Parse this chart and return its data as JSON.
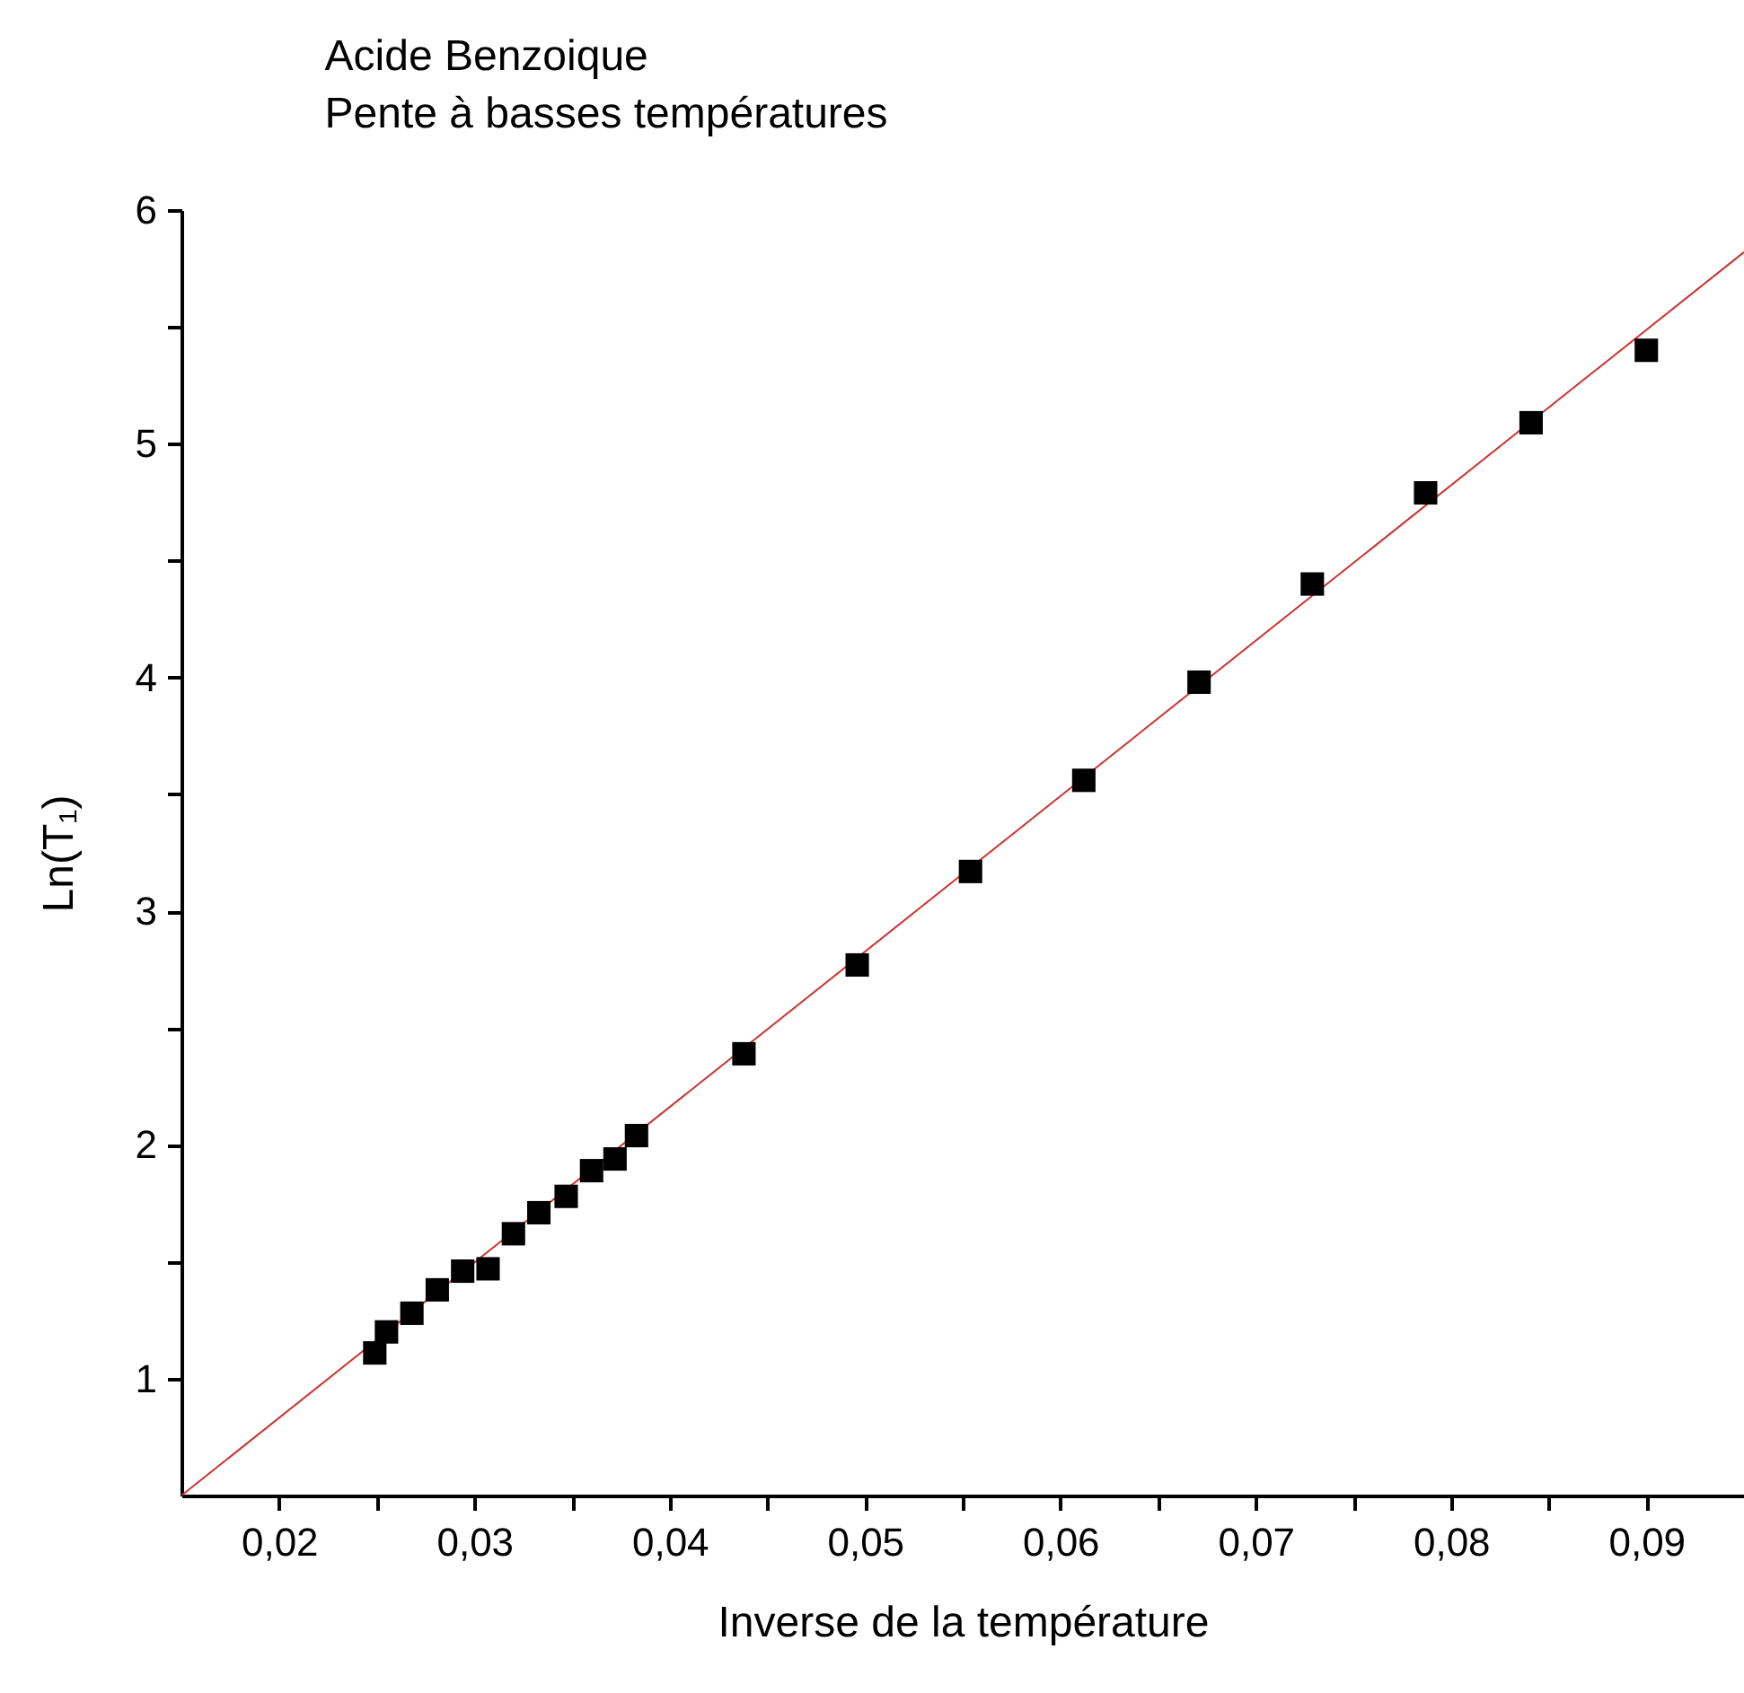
{
  "chart_data": {
    "type": "scatter",
    "title": "Acide Benzoique",
    "subtitle": "Pente à basses températures",
    "xlabel": "Inverse de la température",
    "ylabel": "Ln(T₁)",
    "grid": false,
    "xlim": [
      0.015,
      0.095
    ],
    "ylim": [
      0.5,
      6
    ],
    "xticks": [
      {
        "value": 0.02,
        "label": "0,02"
      },
      {
        "value": 0.025,
        "label": null
      },
      {
        "value": 0.03,
        "label": "0,03"
      },
      {
        "value": 0.035,
        "label": null
      },
      {
        "value": 0.04,
        "label": "0,04"
      },
      {
        "value": 0.045,
        "label": null
      },
      {
        "value": 0.05,
        "label": "0,05"
      },
      {
        "value": 0.055,
        "label": null
      },
      {
        "value": 0.06,
        "label": "0,06"
      },
      {
        "value": 0.065,
        "label": null
      },
      {
        "value": 0.07,
        "label": "0,07"
      },
      {
        "value": 0.075,
        "label": null
      },
      {
        "value": 0.08,
        "label": "0,08"
      },
      {
        "value": 0.085,
        "label": null
      },
      {
        "value": 0.09,
        "label": "0,09"
      }
    ],
    "yticks": [
      1,
      {
        "value": 1.5,
        "label": null
      },
      2,
      {
        "value": 2.5,
        "label": null
      },
      3,
      {
        "value": 3.5,
        "label": null
      },
      4,
      {
        "value": 4.5,
        "label": null
      },
      5,
      {
        "value": 5.5,
        "label": null
      },
      6
    ],
    "series": [
      {
        "type": "scatter",
        "marker": "square",
        "color": "#000000",
        "x": [
          0.0249,
          0.0255,
          0.0268,
          0.0281,
          0.0294,
          0.0307,
          0.032,
          0.0333,
          0.0347,
          0.036,
          0.0372,
          0.0383,
          0.0438,
          0.0496,
          0.0554,
          0.0612,
          0.0671,
          0.0729,
          0.0787,
          0.0841,
          0.09
        ],
        "values": [
          1.11,
          1.2,
          1.28,
          1.38,
          1.46,
          1.47,
          1.62,
          1.71,
          1.78,
          1.89,
          1.94,
          2.04,
          2.39,
          2.77,
          3.17,
          3.56,
          3.98,
          4.4,
          4.79,
          5.09,
          5.4
        ]
      },
      {
        "type": "line",
        "marker": "none",
        "color": "#cc3333",
        "x": [
          0.015,
          0.095
        ],
        "values": [
          0.5,
          5.82
        ]
      }
    ]
  }
}
